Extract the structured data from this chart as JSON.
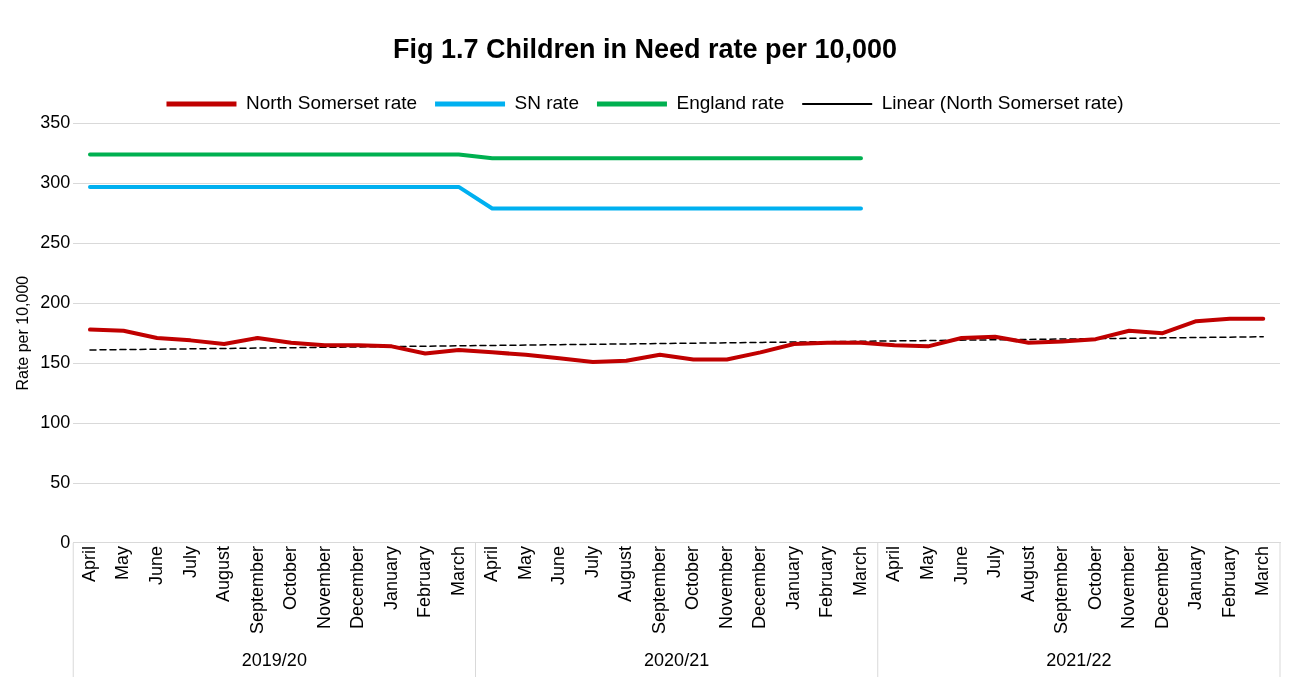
{
  "chart_data": {
    "type": "line",
    "title": "Fig 1.7 Children in Need rate per 10,000",
    "ylabel": "Rate per 10,000",
    "categories": [
      "April",
      "May",
      "June",
      "July",
      "August",
      "September",
      "October",
      "November",
      "December",
      "January",
      "February",
      "March",
      "April",
      "May",
      "June",
      "July",
      "August",
      "September",
      "October",
      "November",
      "December",
      "January",
      "February",
      "March",
      "April",
      "May",
      "June",
      "July",
      "August",
      "September",
      "October",
      "November",
      "December",
      "January",
      "February",
      "March"
    ],
    "series": [
      {
        "name": "North Somerset rate",
        "color": "#c00000",
        "values": [
          178,
          177,
          171,
          169,
          166,
          171,
          167,
          165,
          165,
          164,
          158,
          161,
          159,
          157,
          154,
          151,
          152,
          157,
          153,
          153,
          159,
          166,
          167,
          167,
          165,
          164,
          171,
          172,
          167,
          168,
          170,
          177,
          175,
          185,
          187,
          187
        ]
      },
      {
        "name": "SN rate",
        "color": "#00b0f0",
        "values": [
          297,
          297,
          297,
          297,
          297,
          297,
          297,
          297,
          297,
          297,
          297,
          297,
          279,
          279,
          279,
          279,
          279,
          279,
          279,
          279,
          279,
          279,
          279,
          279,
          null,
          null,
          null,
          null,
          null,
          null,
          null,
          null,
          null,
          null,
          null,
          null
        ]
      },
      {
        "name": "England rate",
        "color": "#00b050",
        "values": [
          324,
          324,
          324,
          324,
          324,
          324,
          324,
          324,
          324,
          324,
          324,
          324,
          321,
          321,
          321,
          321,
          321,
          321,
          321,
          321,
          321,
          321,
          321,
          321,
          null,
          null,
          null,
          null,
          null,
          null,
          null,
          null,
          null,
          null,
          null,
          null
        ]
      },
      {
        "name": "Linear (North Somerset rate)",
        "color": "#000000",
        "line_style": "dashed",
        "values": [
          161,
          null,
          null,
          null,
          null,
          null,
          null,
          null,
          null,
          null,
          null,
          null,
          null,
          null,
          null,
          null,
          null,
          null,
          null,
          null,
          null,
          null,
          null,
          null,
          null,
          null,
          null,
          null,
          null,
          null,
          null,
          null,
          null,
          null,
          null,
          172
        ]
      }
    ],
    "ylim": [
      0,
      350
    ],
    "yticks": [
      0,
      50,
      100,
      150,
      200,
      250,
      300,
      350
    ],
    "grid": "y",
    "legend": "top",
    "marker": "none",
    "annotations": [
      "2019/20",
      "2020/21",
      "2021/22"
    ]
  }
}
